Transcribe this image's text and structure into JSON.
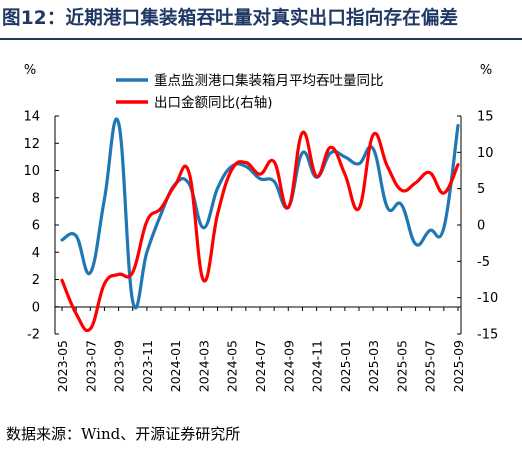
{
  "header": {
    "title": "图12：近期港口集装箱吞吐量对真实出口指向存在偏差"
  },
  "footer": {
    "source": "数据来源：Wind、开源证券研究所"
  },
  "chart_data": {
    "type": "line",
    "left_unit": "%",
    "right_unit": "%",
    "x_tick_labels": [
      "2023-05",
      "2023-07",
      "2023-09",
      "2023-11",
      "2024-01",
      "2024-03",
      "2024-05",
      "2024-07",
      "2024-09",
      "2024-11",
      "2025-01",
      "2025-03",
      "2025-05",
      "2025-07",
      "2025-09"
    ],
    "left_axis": {
      "ylim": [
        -2,
        14
      ],
      "ticks": [
        -2,
        0,
        2,
        4,
        6,
        8,
        10,
        12,
        14
      ]
    },
    "right_axis": {
      "ylim": [
        -15,
        15
      ],
      "ticks": [
        -15,
        -10,
        -5,
        0,
        5,
        10,
        15
      ]
    },
    "legend_position": "top-center",
    "grid": false,
    "series": [
      {
        "name": "重点监测港口集装箱月平均吞吐量同比",
        "axis": "left",
        "color": "#1f77b4",
        "x": [
          "2023-05",
          "2023-06",
          "2023-07",
          "2023-08",
          "2023-09",
          "2023-10",
          "2023-11",
          "2023-12",
          "2024-01",
          "2024-02",
          "2024-03",
          "2024-04",
          "2024-05",
          "2024-06",
          "2024-07",
          "2024-08",
          "2024-09",
          "2024-10",
          "2024-11",
          "2024-12",
          "2025-01",
          "2025-02",
          "2025-03",
          "2025-04",
          "2025-05",
          "2025-06",
          "2025-07",
          "2025-08",
          "2025-09"
        ],
        "values": [
          4.9,
          5.2,
          2.5,
          7.9,
          13.5,
          0.4,
          4.0,
          6.8,
          9.0,
          9.0,
          5.8,
          8.7,
          10.3,
          10.3,
          9.4,
          9.2,
          7.3,
          11.3,
          9.5,
          11.3,
          11.0,
          10.5,
          11.6,
          7.3,
          7.5,
          4.6,
          5.6,
          5.8,
          13.3
        ]
      },
      {
        "name": "出口金额同比(右轴)",
        "axis": "right",
        "color": "#ff0000",
        "x": [
          "2023-05",
          "2023-06",
          "2023-07",
          "2023-08",
          "2023-09",
          "2023-10",
          "2023-11",
          "2023-12",
          "2024-01",
          "2024-02",
          "2024-03",
          "2024-04",
          "2024-05",
          "2024-06",
          "2024-07",
          "2024-08",
          "2024-09",
          "2024-10",
          "2024-11",
          "2024-12",
          "2025-01",
          "2025-02",
          "2025-03",
          "2025-04",
          "2025-05",
          "2025-06",
          "2025-07",
          "2025-08",
          "2025-09"
        ],
        "values": [
          -7.6,
          -12.2,
          -14.3,
          -8.1,
          -6.8,
          -6.5,
          0.5,
          2.3,
          5.5,
          7.1,
          -7.6,
          1.5,
          7.6,
          8.6,
          7.0,
          8.7,
          2.4,
          12.7,
          6.7,
          10.7,
          7.0,
          2.3,
          12.4,
          8.1,
          4.8,
          5.8,
          7.2,
          4.4,
          8.3
        ],
        "values_note_removed": true
      }
    ]
  }
}
